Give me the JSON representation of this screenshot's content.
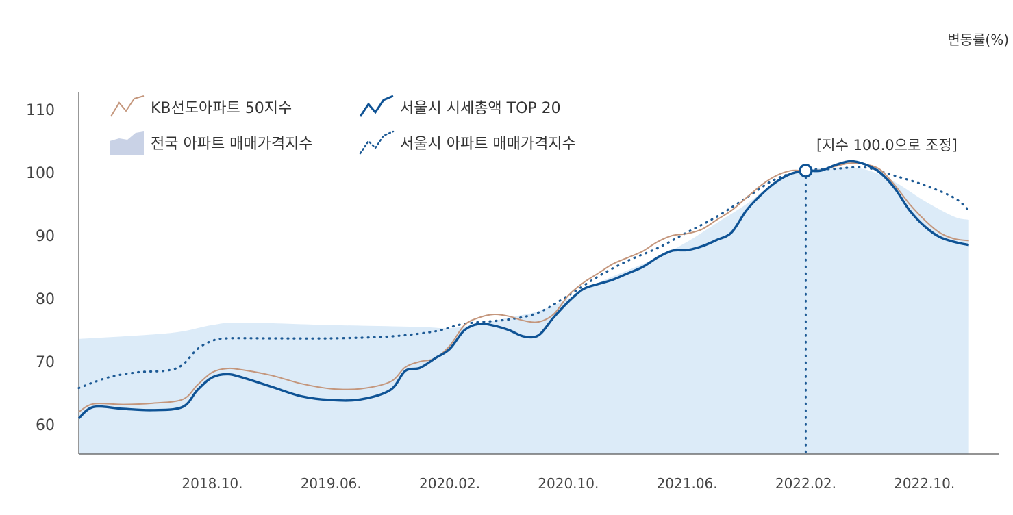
{
  "unit_label": "변동률(%)",
  "colors": {
    "kb50": "#c4967c",
    "top20": "#0f5395",
    "national_area": "#dcebf8",
    "seoul_index": "#1d5a95",
    "axis": "#555555"
  },
  "chart_data": {
    "type": "line",
    "title": "",
    "xlabel": "",
    "ylabel": "변동률(%)",
    "ylim": [
      55,
      112
    ],
    "yticks": [
      60,
      70,
      80,
      90,
      100,
      110
    ],
    "xlim": [
      "2018-01",
      "2023-03"
    ],
    "xticks": [
      {
        "label": "2018.10.",
        "date": "2018-10"
      },
      {
        "label": "2019.06.",
        "date": "2019-06"
      },
      {
        "label": "2020.02.",
        "date": "2020-02"
      },
      {
        "label": "2020.10.",
        "date": "2020-10"
      },
      {
        "label": "2021.06.",
        "date": "2021-06"
      },
      {
        "label": "2022.02.",
        "date": "2022-02"
      },
      {
        "label": "2022.10.",
        "date": "2022-10"
      }
    ],
    "legend": [
      "KB선도아파트 50지수",
      "서울시 시세총액 TOP 20",
      "전국 아파트 매매가격지수",
      "서울시 아파트 매매가격지수"
    ],
    "legend_position": "top-left",
    "annotation": {
      "text": "[지수 100.0으로 조정]",
      "date": "2022-02",
      "value": 100.3
    },
    "series": [
      {
        "name": "KB선도아파트 50지수",
        "style": "line",
        "points": [
          [
            "2018-01",
            62
          ],
          [
            "2018-02",
            63.3
          ],
          [
            "2018-04",
            63.2
          ],
          [
            "2018-06",
            63.4
          ],
          [
            "2018-08",
            64
          ],
          [
            "2018-09",
            66.3
          ],
          [
            "2018-10",
            68.3
          ],
          [
            "2018-11",
            68.9
          ],
          [
            "2018-12",
            68.7
          ],
          [
            "2019-02",
            67.8
          ],
          [
            "2019-04",
            66.5
          ],
          [
            "2019-06",
            65.7
          ],
          [
            "2019-08",
            65.7
          ],
          [
            "2019-10",
            66.8
          ],
          [
            "2019-11",
            69.1
          ],
          [
            "2019-12",
            70
          ],
          [
            "2020-01",
            70.5
          ],
          [
            "2020-02",
            72.5
          ],
          [
            "2020-03",
            75.8
          ],
          [
            "2020-04",
            77
          ],
          [
            "2020-05",
            77.5
          ],
          [
            "2020-06",
            77.2
          ],
          [
            "2020-07",
            76.5
          ],
          [
            "2020-08",
            76.3
          ],
          [
            "2020-09",
            77.5
          ],
          [
            "2020-10",
            80.5
          ],
          [
            "2020-11",
            82.5
          ],
          [
            "2020-12",
            84
          ],
          [
            "2021-01",
            85.5
          ],
          [
            "2021-02",
            86.5
          ],
          [
            "2021-03",
            87.5
          ],
          [
            "2021-04",
            89
          ],
          [
            "2021-05",
            90
          ],
          [
            "2021-06",
            90.3
          ],
          [
            "2021-07",
            91
          ],
          [
            "2021-08",
            92.5
          ],
          [
            "2021-09",
            94
          ],
          [
            "2021-10",
            96
          ],
          [
            "2021-11",
            98
          ],
          [
            "2021-12",
            99.5
          ],
          [
            "2022-01",
            100.3
          ],
          [
            "2022-02",
            100.3
          ],
          [
            "2022-03",
            100.4
          ],
          [
            "2022-04",
            101
          ],
          [
            "2022-05",
            101.5
          ],
          [
            "2022-06",
            101.3
          ],
          [
            "2022-07",
            100.5
          ],
          [
            "2022-08",
            98
          ],
          [
            "2022-09",
            95
          ],
          [
            "2022-10",
            92.5
          ],
          [
            "2022-11",
            90.5
          ],
          [
            "2022-12",
            89.5
          ],
          [
            "2023-01",
            89.2
          ]
        ]
      },
      {
        "name": "서울시 시세총액 TOP 20",
        "style": "line",
        "points": [
          [
            "2018-01",
            61
          ],
          [
            "2018-02",
            62.8
          ],
          [
            "2018-04",
            62.5
          ],
          [
            "2018-06",
            62.3
          ],
          [
            "2018-08",
            62.8
          ],
          [
            "2018-09",
            65.5
          ],
          [
            "2018-10",
            67.5
          ],
          [
            "2018-11",
            68
          ],
          [
            "2018-12",
            67.5
          ],
          [
            "2019-02",
            66
          ],
          [
            "2019-04",
            64.5
          ],
          [
            "2019-06",
            63.9
          ],
          [
            "2019-08",
            64
          ],
          [
            "2019-10",
            65.5
          ],
          [
            "2019-11",
            68.5
          ],
          [
            "2019-12",
            69
          ],
          [
            "2020-01",
            70.5
          ],
          [
            "2020-02",
            72
          ],
          [
            "2020-03",
            75
          ],
          [
            "2020-04",
            76
          ],
          [
            "2020-05",
            75.7
          ],
          [
            "2020-06",
            75
          ],
          [
            "2020-07",
            74
          ],
          [
            "2020-08",
            74.2
          ],
          [
            "2020-09",
            77
          ],
          [
            "2020-10",
            79.5
          ],
          [
            "2020-11",
            81.5
          ],
          [
            "2020-12",
            82.3
          ],
          [
            "2021-01",
            83
          ],
          [
            "2021-02",
            84
          ],
          [
            "2021-03",
            85
          ],
          [
            "2021-04",
            86.5
          ],
          [
            "2021-05",
            87.6
          ],
          [
            "2021-06",
            87.7
          ],
          [
            "2021-07",
            88.3
          ],
          [
            "2021-08",
            89.3
          ],
          [
            "2021-09",
            90.5
          ],
          [
            "2021-10",
            94
          ],
          [
            "2021-11",
            96.5
          ],
          [
            "2021-12",
            98.5
          ],
          [
            "2022-01",
            99.8
          ],
          [
            "2022-02",
            100.3
          ],
          [
            "2022-03",
            100.3
          ],
          [
            "2022-04",
            101.2
          ],
          [
            "2022-05",
            101.8
          ],
          [
            "2022-06",
            101.3
          ],
          [
            "2022-07",
            100
          ],
          [
            "2022-08",
            97.5
          ],
          [
            "2022-09",
            94
          ],
          [
            "2022-10",
            91.5
          ],
          [
            "2022-11",
            89.8
          ],
          [
            "2022-12",
            89
          ],
          [
            "2023-01",
            88.5
          ]
        ]
      },
      {
        "name": "전국 아파트 매매가격지수",
        "style": "area",
        "points": [
          [
            "2018-01",
            73.6
          ],
          [
            "2018-06",
            74.3
          ],
          [
            "2018-08",
            74.8
          ],
          [
            "2018-10",
            75.8
          ],
          [
            "2018-12",
            76.2
          ],
          [
            "2019-06",
            75.8
          ],
          [
            "2019-12",
            75.5
          ],
          [
            "2020-02",
            75.3
          ],
          [
            "2020-04",
            76
          ],
          [
            "2020-06",
            77
          ],
          [
            "2020-08",
            78
          ],
          [
            "2020-10",
            80
          ],
          [
            "2020-12",
            82.5
          ],
          [
            "2021-02",
            84.5
          ],
          [
            "2021-04",
            86.5
          ],
          [
            "2021-06",
            89
          ],
          [
            "2021-08",
            92
          ],
          [
            "2021-10",
            95
          ],
          [
            "2021-12",
            98.5
          ],
          [
            "2022-02",
            100.3
          ],
          [
            "2022-04",
            100.8
          ],
          [
            "2022-06",
            100.5
          ],
          [
            "2022-08",
            98.5
          ],
          [
            "2022-10",
            95.5
          ],
          [
            "2022-12",
            93
          ],
          [
            "2023-01",
            92.5
          ]
        ]
      },
      {
        "name": "서울시 아파트 매매가격지수",
        "style": "dotted",
        "points": [
          [
            "2018-01",
            65.8
          ],
          [
            "2018-03",
            67.5
          ],
          [
            "2018-05",
            68.3
          ],
          [
            "2018-07",
            68.6
          ],
          [
            "2018-08",
            69.5
          ],
          [
            "2018-09",
            72
          ],
          [
            "2018-10",
            73.3
          ],
          [
            "2018-11",
            73.7
          ],
          [
            "2019-02",
            73.7
          ],
          [
            "2019-06",
            73.7
          ],
          [
            "2019-10",
            74
          ],
          [
            "2020-01",
            74.8
          ],
          [
            "2020-03",
            76
          ],
          [
            "2020-06",
            76.7
          ],
          [
            "2020-08",
            77.8
          ],
          [
            "2020-10",
            80.5
          ],
          [
            "2020-12",
            83.5
          ],
          [
            "2021-02",
            86
          ],
          [
            "2021-04",
            88
          ],
          [
            "2021-06",
            90.5
          ],
          [
            "2021-08",
            93
          ],
          [
            "2021-10",
            96
          ],
          [
            "2021-12",
            99
          ],
          [
            "2022-02",
            100.3
          ],
          [
            "2022-04",
            100.6
          ],
          [
            "2022-06",
            100.8
          ],
          [
            "2022-08",
            99.5
          ],
          [
            "2022-10",
            98
          ],
          [
            "2022-12",
            96
          ],
          [
            "2023-01",
            94
          ]
        ]
      }
    ]
  }
}
